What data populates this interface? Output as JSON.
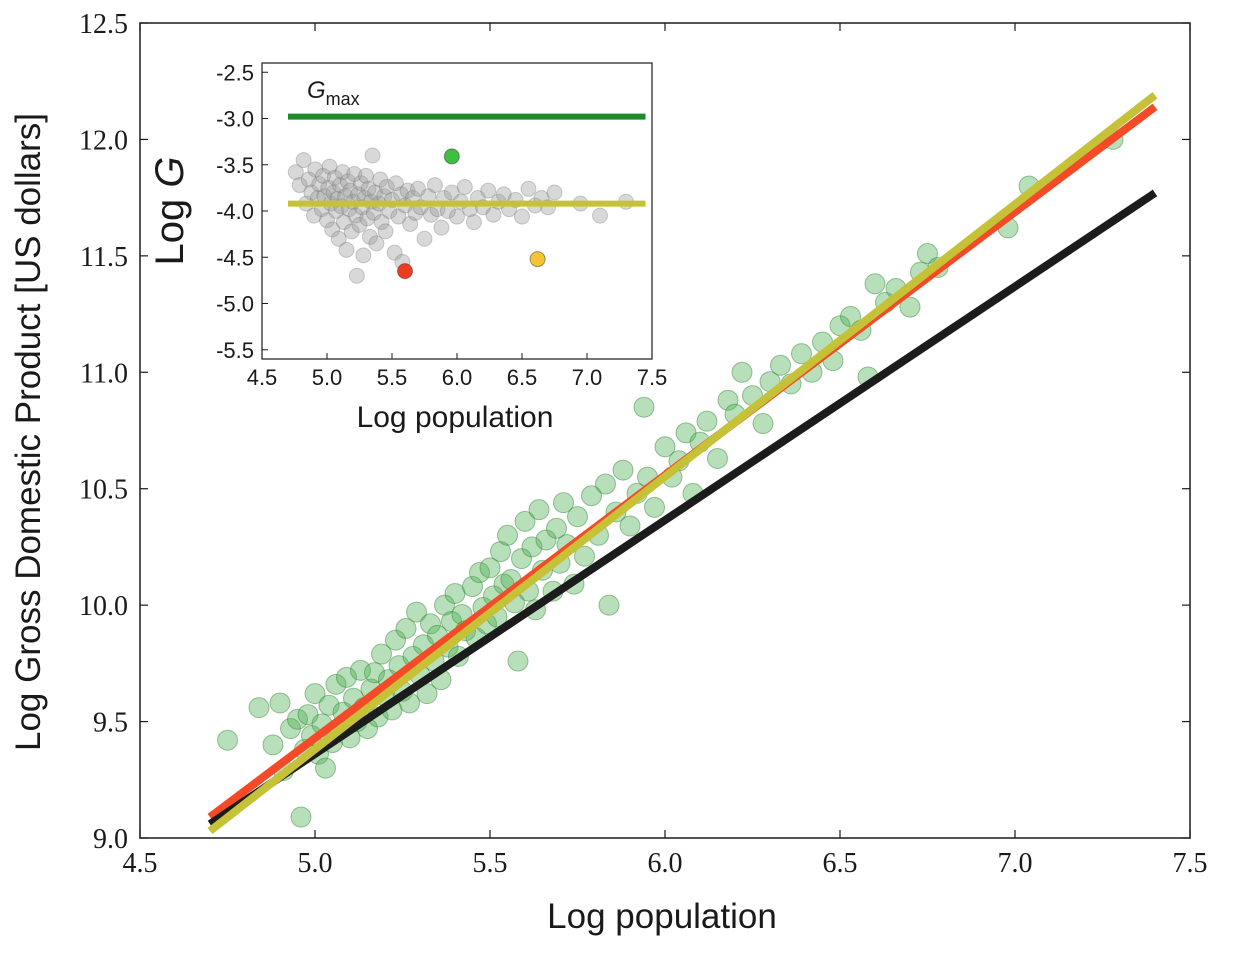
{
  "chart_data": [
    {
      "type": "scatter",
      "id": "main",
      "title": "",
      "xlabel": "Log population",
      "ylabel": "Log Gross Domestic Product [US dollars]",
      "xlim": [
        4.5,
        7.5
      ],
      "ylim": [
        9.0,
        12.5
      ],
      "xticks": [
        "4.5",
        "5.0",
        "5.5",
        "6.0",
        "6.5",
        "7.0",
        "7.5"
      ],
      "yticks": [
        "9.0",
        "9.5",
        "10.0",
        "10.5",
        "11.0",
        "11.5",
        "12.0",
        "12.5"
      ],
      "grid": false,
      "points_color": "#4caf50",
      "points": [
        [
          4.75,
          9.42
        ],
        [
          4.84,
          9.56
        ],
        [
          4.88,
          9.4
        ],
        [
          4.9,
          9.58
        ],
        [
          4.91,
          9.29
        ],
        [
          4.93,
          9.47
        ],
        [
          4.95,
          9.51
        ],
        [
          4.96,
          9.09
        ],
        [
          4.97,
          9.38
        ],
        [
          4.98,
          9.53
        ],
        [
          4.99,
          9.44
        ],
        [
          5.0,
          9.62
        ],
        [
          5.01,
          9.36
        ],
        [
          5.02,
          9.49
        ],
        [
          5.03,
          9.3
        ],
        [
          5.04,
          9.57
        ],
        [
          5.05,
          9.41
        ],
        [
          5.06,
          9.66
        ],
        [
          5.07,
          9.47
        ],
        [
          5.08,
          9.54
        ],
        [
          5.09,
          9.69
        ],
        [
          5.1,
          9.43
        ],
        [
          5.11,
          9.6
        ],
        [
          5.12,
          9.5
        ],
        [
          5.13,
          9.72
        ],
        [
          5.14,
          9.56
        ],
        [
          5.15,
          9.47
        ],
        [
          5.16,
          9.64
        ],
        [
          5.17,
          9.71
        ],
        [
          5.18,
          9.52
        ],
        [
          5.19,
          9.79
        ],
        [
          5.2,
          9.61
        ],
        [
          5.21,
          9.68
        ],
        [
          5.22,
          9.55
        ],
        [
          5.23,
          9.85
        ],
        [
          5.24,
          9.74
        ],
        [
          5.25,
          9.63
        ],
        [
          5.26,
          9.9
        ],
        [
          5.27,
          9.58
        ],
        [
          5.28,
          9.78
        ],
        [
          5.29,
          9.97
        ],
        [
          5.3,
          9.7
        ],
        [
          5.31,
          9.83
        ],
        [
          5.32,
          9.62
        ],
        [
          5.33,
          9.92
        ],
        [
          5.34,
          9.76
        ],
        [
          5.35,
          9.87
        ],
        [
          5.36,
          9.68
        ],
        [
          5.37,
          10.0
        ],
        [
          5.38,
          9.82
        ],
        [
          5.39,
          9.93
        ],
        [
          5.4,
          10.05
        ],
        [
          5.41,
          9.78
        ],
        [
          5.42,
          9.96
        ],
        [
          5.43,
          9.89
        ],
        [
          5.45,
          10.08
        ],
        [
          5.46,
          9.86
        ],
        [
          5.47,
          10.14
        ],
        [
          5.48,
          9.99
        ],
        [
          5.49,
          9.92
        ],
        [
          5.5,
          10.16
        ],
        [
          5.51,
          10.04
        ],
        [
          5.52,
          9.95
        ],
        [
          5.53,
          10.23
        ],
        [
          5.54,
          10.09
        ],
        [
          5.55,
          10.3
        ],
        [
          5.56,
          10.11
        ],
        [
          5.57,
          10.01
        ],
        [
          5.58,
          9.76
        ],
        [
          5.59,
          10.2
        ],
        [
          5.6,
          10.36
        ],
        [
          5.61,
          10.06
        ],
        [
          5.62,
          10.25
        ],
        [
          5.63,
          9.98
        ],
        [
          5.64,
          10.41
        ],
        [
          5.65,
          10.15
        ],
        [
          5.66,
          10.28
        ],
        [
          5.68,
          10.06
        ],
        [
          5.69,
          10.33
        ],
        [
          5.7,
          10.18
        ],
        [
          5.71,
          10.44
        ],
        [
          5.72,
          10.26
        ],
        [
          5.74,
          10.09
        ],
        [
          5.75,
          10.38
        ],
        [
          5.77,
          10.21
        ],
        [
          5.79,
          10.47
        ],
        [
          5.81,
          10.3
        ],
        [
          5.83,
          10.52
        ],
        [
          5.84,
          10.0
        ],
        [
          5.86,
          10.4
        ],
        [
          5.88,
          10.58
        ],
        [
          5.9,
          10.34
        ],
        [
          5.92,
          10.48
        ],
        [
          5.94,
          10.85
        ],
        [
          5.95,
          10.55
        ],
        [
          5.97,
          10.42
        ],
        [
          6.0,
          10.68
        ],
        [
          6.02,
          10.55
        ],
        [
          6.04,
          10.62
        ],
        [
          6.06,
          10.74
        ],
        [
          6.08,
          10.48
        ],
        [
          6.1,
          10.7
        ],
        [
          6.12,
          10.79
        ],
        [
          6.15,
          10.63
        ],
        [
          6.18,
          10.88
        ],
        [
          6.2,
          10.82
        ],
        [
          6.22,
          11.0
        ],
        [
          6.25,
          10.9
        ],
        [
          6.28,
          10.78
        ],
        [
          6.3,
          10.96
        ],
        [
          6.33,
          11.03
        ],
        [
          6.36,
          10.95
        ],
        [
          6.39,
          11.08
        ],
        [
          6.42,
          11.0
        ],
        [
          6.45,
          11.13
        ],
        [
          6.48,
          11.05
        ],
        [
          6.5,
          11.2
        ],
        [
          6.53,
          11.24
        ],
        [
          6.56,
          11.18
        ],
        [
          6.58,
          10.98
        ],
        [
          6.6,
          11.38
        ],
        [
          6.63,
          11.3
        ],
        [
          6.66,
          11.36
        ],
        [
          6.7,
          11.28
        ],
        [
          6.73,
          11.43
        ],
        [
          6.75,
          11.51
        ],
        [
          6.78,
          11.45
        ],
        [
          6.98,
          11.62
        ],
        [
          7.04,
          11.8
        ],
        [
          7.28,
          12.0
        ]
      ],
      "series": [
        {
          "color": "#f44a28",
          "x": [
            4.7,
            7.4
          ],
          "y": [
            9.09,
            12.14
          ]
        },
        {
          "color": "#1c1c1c",
          "x": [
            4.7,
            7.4
          ],
          "y": [
            9.06,
            11.77
          ]
        },
        {
          "color": "#c5c238",
          "x": [
            4.7,
            7.4
          ],
          "y": [
            9.03,
            12.19
          ]
        }
      ]
    },
    {
      "type": "scatter",
      "id": "inset",
      "title": "",
      "xlabel": "Log population",
      "ylabel_prefix": "Log ",
      "ylabel_var": "G",
      "xlim": [
        4.5,
        7.5
      ],
      "ylim": [
        -5.6,
        -2.4
      ],
      "xticks": [
        "4.5",
        "5.0",
        "5.5",
        "6.0",
        "6.5",
        "7.0",
        "7.5"
      ],
      "yticks": [
        "-2.5",
        "-3.0",
        "-3.5",
        "-4.0",
        "-4.5",
        "-5.0",
        "-5.5"
      ],
      "grid": false,
      "points_color": "#9e9e9e",
      "points": [
        [
          4.76,
          -3.58
        ],
        [
          4.79,
          -3.72
        ],
        [
          4.82,
          -3.45
        ],
        [
          4.84,
          -3.92
        ],
        [
          4.86,
          -3.66
        ],
        [
          4.88,
          -3.8
        ],
        [
          4.9,
          -4.05
        ],
        [
          4.91,
          -3.55
        ],
        [
          4.93,
          -3.86
        ],
        [
          4.94,
          -3.71
        ],
        [
          4.96,
          -3.98
        ],
        [
          4.97,
          -3.62
        ],
        [
          4.98,
          -3.84
        ],
        [
          5.0,
          -4.1
        ],
        [
          5.01,
          -3.75
        ],
        [
          5.02,
          -3.52
        ],
        [
          5.03,
          -3.92
        ],
        [
          5.04,
          -4.2
        ],
        [
          5.05,
          -3.8
        ],
        [
          5.06,
          -3.64
        ],
        [
          5.07,
          -4.0
        ],
        [
          5.08,
          -3.87
        ],
        [
          5.09,
          -4.3
        ],
        [
          5.1,
          -3.72
        ],
        [
          5.11,
          -3.95
        ],
        [
          5.12,
          -3.58
        ],
        [
          5.13,
          -4.12
        ],
        [
          5.14,
          -3.84
        ],
        [
          5.15,
          -4.42
        ],
        [
          5.16,
          -3.68
        ],
        [
          5.17,
          -3.98
        ],
        [
          5.18,
          -3.78
        ],
        [
          5.19,
          -4.22
        ],
        [
          5.2,
          -3.9
        ],
        [
          5.21,
          -3.6
        ],
        [
          5.22,
          -4.05
        ],
        [
          5.23,
          -4.7
        ],
        [
          5.24,
          -3.82
        ],
        [
          5.25,
          -4.15
        ],
        [
          5.26,
          -3.7
        ],
        [
          5.27,
          -3.96
        ],
        [
          5.28,
          -4.48
        ],
        [
          5.29,
          -3.86
        ],
        [
          5.3,
          -3.62
        ],
        [
          5.31,
          -4.08
        ],
        [
          5.32,
          -3.76
        ],
        [
          5.33,
          -4.28
        ],
        [
          5.34,
          -3.9
        ],
        [
          5.35,
          -3.4
        ],
        [
          5.36,
          -4.02
        ],
        [
          5.37,
          -3.8
        ],
        [
          5.38,
          -4.35
        ],
        [
          5.4,
          -3.92
        ],
        [
          5.41,
          -3.66
        ],
        [
          5.42,
          -4.12
        ],
        [
          5.44,
          -3.84
        ],
        [
          5.45,
          -4.22
        ],
        [
          5.46,
          -3.74
        ],
        [
          5.48,
          -4.0
        ],
        [
          5.5,
          -3.88
        ],
        [
          5.52,
          -4.45
        ],
        [
          5.53,
          -3.7
        ],
        [
          5.55,
          -4.06
        ],
        [
          5.57,
          -3.82
        ],
        [
          5.58,
          -4.55
        ],
        [
          5.6,
          -3.94
        ],
        [
          5.62,
          -3.78
        ],
        [
          5.64,
          -4.14
        ],
        [
          5.66,
          -3.86
        ],
        [
          5.68,
          -4.02
        ],
        [
          5.7,
          -3.76
        ],
        [
          5.72,
          -3.96
        ],
        [
          5.75,
          -4.3
        ],
        [
          5.78,
          -3.84
        ],
        [
          5.8,
          -4.04
        ],
        [
          5.83,
          -3.72
        ],
        [
          5.85,
          -3.98
        ],
        [
          5.88,
          -4.18
        ],
        [
          5.9,
          -3.86
        ],
        [
          5.93,
          -4.0
        ],
        [
          5.96,
          -3.8
        ],
        [
          6.0,
          -4.06
        ],
        [
          6.03,
          -3.9
        ],
        [
          6.06,
          -3.74
        ],
        [
          6.1,
          -3.98
        ],
        [
          6.13,
          -4.12
        ],
        [
          6.16,
          -3.86
        ],
        [
          6.2,
          -3.96
        ],
        [
          6.24,
          -3.78
        ],
        [
          6.28,
          -4.04
        ],
        [
          6.32,
          -3.9
        ],
        [
          6.36,
          -3.82
        ],
        [
          6.4,
          -3.98
        ],
        [
          6.45,
          -3.88
        ],
        [
          6.5,
          -4.06
        ],
        [
          6.55,
          -3.76
        ],
        [
          6.6,
          -3.94
        ],
        [
          6.65,
          -3.86
        ],
        [
          6.7,
          -3.96
        ],
        [
          6.75,
          -3.8
        ],
        [
          6.95,
          -3.92
        ],
        [
          7.1,
          -4.05
        ],
        [
          7.3,
          -3.9
        ]
      ],
      "highlighted_points": [
        {
          "x": 5.96,
          "y": -3.41,
          "color": "#3fbf3f"
        },
        {
          "x": 5.6,
          "y": -4.65,
          "color": "#f03c1e"
        },
        {
          "x": 6.62,
          "y": -4.52,
          "color": "#f5c531"
        }
      ],
      "reference_lines": [
        {
          "label_var": "G",
          "label_sub": "max",
          "y": -2.98,
          "color": "#1e8a2e"
        },
        {
          "y": -3.92,
          "color": "#c5c238"
        }
      ],
      "line_x_range": [
        4.7,
        7.45
      ]
    }
  ]
}
